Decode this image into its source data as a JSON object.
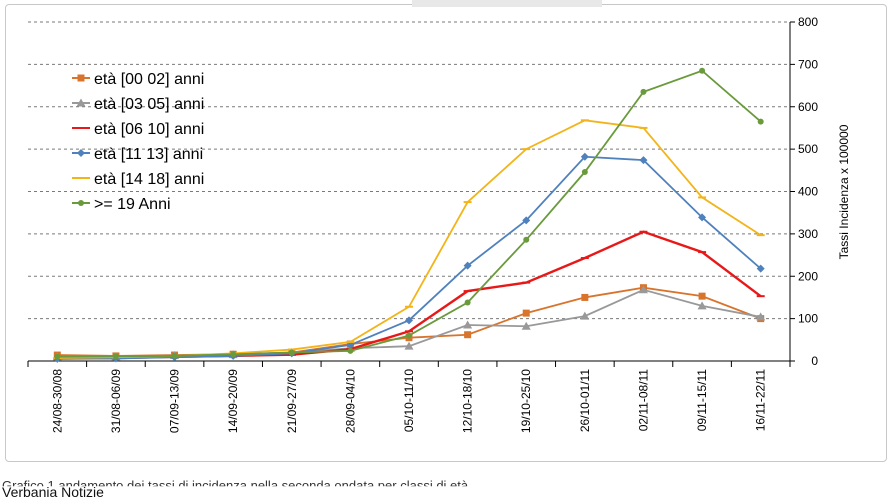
{
  "chart_data": {
    "type": "line",
    "title": "",
    "xlabel": "",
    "ylabel": "Tassi Incidenza x 100000",
    "ylim": [
      0,
      800
    ],
    "yticks": [
      0,
      100,
      200,
      300,
      400,
      500,
      600,
      700,
      800
    ],
    "grid": "horizontal dashed",
    "legend_position": "top-left",
    "categories": [
      "24/08-30/08",
      "31/08-06/09",
      "07/09-13/09",
      "14/09-20/09",
      "21/09-27/09",
      "28/09-04/10",
      "05/10-11/10",
      "12/10-18/10",
      "19/10-25/10",
      "26/10-01/11",
      "02/11-08/11",
      "09/11-15/11",
      "16/11-22/11"
    ],
    "series": [
      {
        "name": "età [00 02] anni",
        "color": "#d8742c",
        "marker": "square",
        "values": [
          14,
          12,
          14,
          16,
          20,
          40,
          55,
          62,
          113,
          150,
          173,
          153,
          100
        ]
      },
      {
        "name": "età [03 05] anni",
        "color": "#999999",
        "marker": "triangle",
        "values": [
          9,
          10,
          13,
          15,
          20,
          30,
          35,
          85,
          82,
          106,
          168,
          130,
          104
        ]
      },
      {
        "name": "età [06 10] anni",
        "color": "#e81818",
        "marker": "dash",
        "values": [
          6,
          7,
          10,
          12,
          15,
          28,
          70,
          165,
          185,
          243,
          305,
          257,
          153
        ]
      },
      {
        "name": "età [11 13] anni",
        "color": "#4f81bd",
        "marker": "diamond",
        "values": [
          5,
          6,
          9,
          12,
          18,
          38,
          96,
          225,
          332,
          482,
          474,
          339,
          218
        ]
      },
      {
        "name": "età [14 18] anni",
        "color": "#f2b418",
        "marker": "dash",
        "values": [
          7,
          9,
          12,
          18,
          27,
          45,
          128,
          375,
          500,
          568,
          550,
          386,
          297
        ]
      },
      {
        "name": ">= 19 Anni",
        "color": "#6a9a3c",
        "marker": "circle",
        "values": [
          10,
          11,
          12,
          16,
          20,
          24,
          60,
          138,
          286,
          446,
          635,
          685,
          565
        ]
      }
    ]
  },
  "caption": "Grafico 1 andamento dei tassi di incidenza nella seconda ondata per classi di età",
  "source": "Verbania Notizie"
}
